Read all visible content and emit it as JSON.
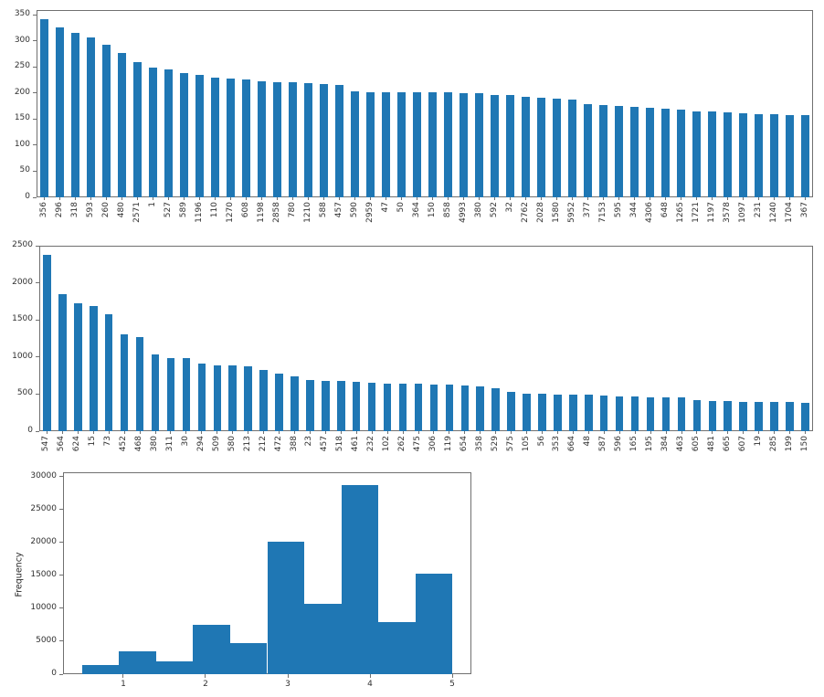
{
  "figure": {
    "background": "#ffffff",
    "text_color": "#303030",
    "spine_color": "#707070"
  },
  "chart_data": [
    {
      "id": "top-bar-chart",
      "type": "bar",
      "title": "",
      "xlabel": "",
      "ylabel": "",
      "legend": null,
      "grid": false,
      "bar_color": "#1f77b4",
      "ylim": [
        0,
        359
      ],
      "yticks": [
        0,
        50,
        100,
        150,
        200,
        250,
        300,
        350
      ],
      "categories": [
        "356",
        "296",
        "318",
        "593",
        "260",
        "480",
        "2571",
        "1",
        "527",
        "589",
        "1196",
        "110",
        "1270",
        "608",
        "1198",
        "2858",
        "780",
        "1210",
        "588",
        "457",
        "590",
        "2959",
        "47",
        "50",
        "364",
        "150",
        "858",
        "4993",
        "380",
        "592",
        "32",
        "2762",
        "2028",
        "1580",
        "5952",
        "377",
        "7153",
        "595",
        "344",
        "4306",
        "648",
        "1265",
        "1721",
        "1197",
        "3578",
        "1097",
        "231",
        "1240",
        "1704",
        "367"
      ],
      "values": [
        342,
        325,
        315,
        306,
        293,
        276,
        259,
        248,
        245,
        239,
        235,
        229,
        228,
        226,
        222,
        221,
        220,
        219,
        217,
        216,
        203,
        202,
        202,
        202,
        201,
        201,
        201,
        200,
        199,
        196,
        196,
        193,
        191,
        189,
        187,
        179,
        177,
        176,
        174,
        172,
        170,
        168,
        165,
        165,
        163,
        162,
        159,
        159,
        157,
        157
      ]
    },
    {
      "id": "middle-bar-chart",
      "type": "bar",
      "title": "",
      "xlabel": "",
      "ylabel": "",
      "legend": null,
      "grid": false,
      "bar_color": "#1f77b4",
      "ylim": [
        0,
        2500
      ],
      "yticks": [
        0,
        500,
        1000,
        1500,
        2000,
        2500
      ],
      "categories": [
        "547",
        "564",
        "624",
        "15",
        "73",
        "452",
        "468",
        "380",
        "311",
        "30",
        "294",
        "509",
        "580",
        "213",
        "212",
        "472",
        "388",
        "23",
        "457",
        "518",
        "461",
        "232",
        "102",
        "262",
        "475",
        "306",
        "119",
        "654",
        "358",
        "529",
        "575",
        "105",
        "56",
        "353",
        "664",
        "48",
        "587",
        "596",
        "165",
        "195",
        "384",
        "463",
        "605",
        "481",
        "665",
        "607",
        "19",
        "285",
        "199",
        "150"
      ],
      "values": [
        2380,
        1850,
        1730,
        1690,
        1580,
        1310,
        1270,
        1030,
        990,
        985,
        910,
        890,
        890,
        875,
        830,
        780,
        740,
        690,
        680,
        680,
        660,
        650,
        640,
        640,
        640,
        630,
        630,
        615,
        600,
        585,
        530,
        510,
        510,
        495,
        495,
        490,
        480,
        470,
        470,
        455,
        455,
        455,
        415,
        410,
        410,
        395,
        395,
        390,
        390,
        380
      ]
    },
    {
      "id": "rating-frequency-histogram",
      "type": "histogram",
      "title": "",
      "xlabel": "",
      "ylabel": "Frequency",
      "legend": null,
      "grid": false,
      "bar_color": "#1f77b4",
      "ylim": [
        0,
        30650
      ],
      "yticks": [
        0,
        5000,
        10000,
        15000,
        20000,
        25000,
        30000
      ],
      "xlim": [
        0.267,
        5.233
      ],
      "xticks": [
        1,
        2,
        3,
        4,
        5
      ],
      "bin_edges": [
        0.5,
        0.95,
        1.4,
        1.85,
        2.3,
        2.75,
        3.2,
        3.65,
        4.1,
        4.55,
        5.0
      ],
      "values": [
        1350,
        3500,
        1950,
        7550,
        4750,
        20150,
        10700,
        28750,
        7900,
        15200
      ]
    }
  ]
}
